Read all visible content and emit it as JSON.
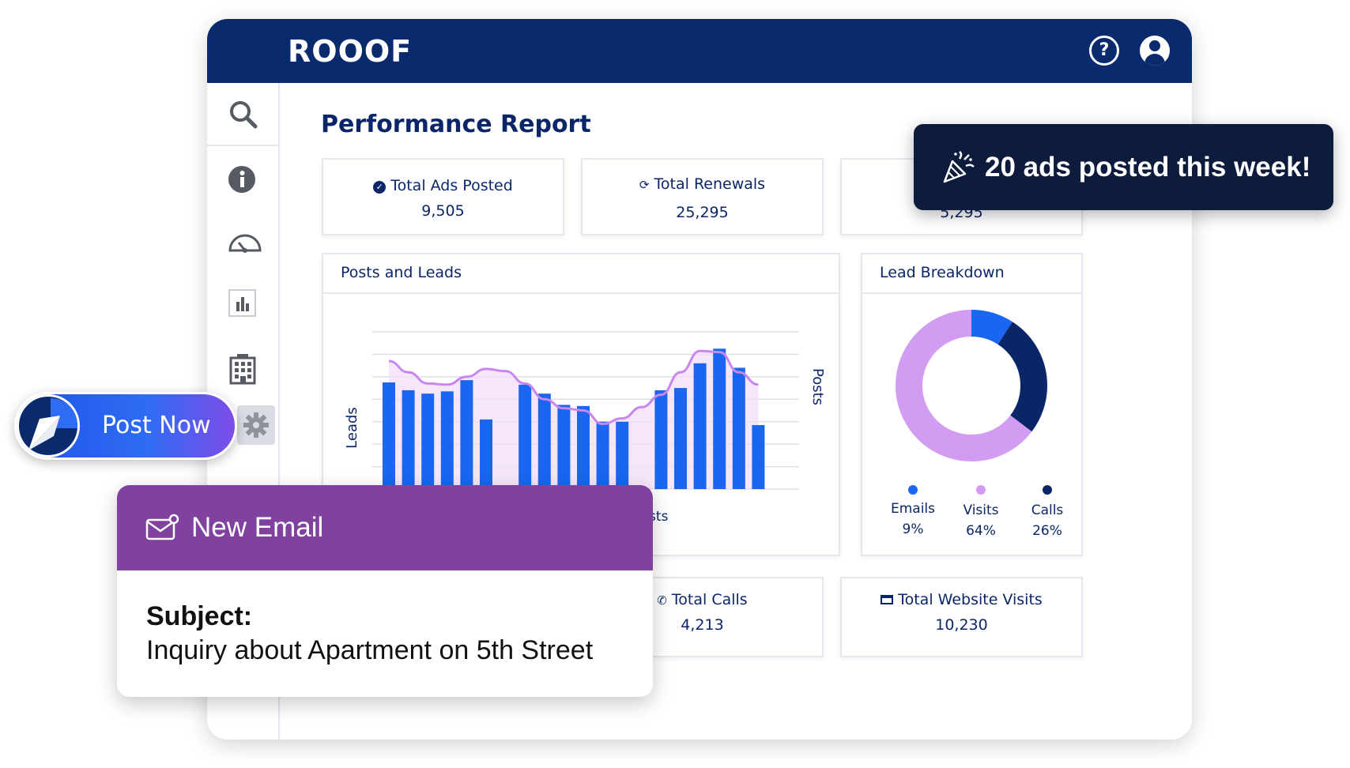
{
  "app": {
    "logo_text": "ROOOF"
  },
  "header": {
    "help_icon": "question-circle-icon",
    "user_icon": "user-avatar-icon"
  },
  "sidebar": {
    "items": [
      {
        "icon": "search-icon"
      },
      {
        "icon": "info-icon"
      },
      {
        "icon": "speedometer-icon"
      },
      {
        "icon": "bar-chart-icon"
      },
      {
        "icon": "building-icon"
      },
      {
        "icon": "gear-icon"
      }
    ]
  },
  "page": {
    "title": "Performance Report"
  },
  "stats_top": [
    {
      "icon": "check-circle-icon",
      "label": "Total Ads Posted",
      "value": "9,505"
    },
    {
      "icon": "refresh-icon",
      "label": "Total Renewals",
      "value": "25,295"
    },
    {
      "icon": "",
      "label": "",
      "value": "5,295"
    }
  ],
  "stats_bottom": [
    {
      "icon": "",
      "label": "",
      "value": ""
    },
    {
      "icon": "phone-icon",
      "label": "Total Calls",
      "value": "4,213"
    },
    {
      "icon": "browser-icon",
      "label": "Total Website Visits",
      "value": "10,230"
    }
  ],
  "posts_panel": {
    "title": "Posts and Leads",
    "chart_data": {
      "type": "bar",
      "title": "Posts and Leads",
      "ylabel": "Leads",
      "y2label": "Posts",
      "series": [
        {
          "name": "Posts",
          "type": "bar",
          "values": [
            9.5,
            8.8,
            8.5,
            8.7,
            9.7,
            6.2,
            0,
            9.3,
            8.5,
            7.5,
            7.4,
            6.0,
            6.0,
            0,
            8.8,
            9.0,
            11.2,
            12.5,
            10.8,
            5.7
          ]
        },
        {
          "name": "Leads",
          "type": "line",
          "values": [
            11.4,
            10.4,
            9.4,
            9.3,
            10.0,
            10.7,
            10.5,
            9.4,
            8.0,
            7.2,
            7.0,
            5.8,
            6.3,
            7.3,
            8.4,
            10.4,
            12.3,
            12.2,
            10.4,
            9.3
          ]
        }
      ],
      "ylim": [
        0,
        14
      ],
      "grid": true,
      "legend": "bottom"
    },
    "legend_label": "Posts"
  },
  "lead_panel": {
    "title": "Lead Breakdown",
    "chart_data": {
      "type": "pie",
      "series": [
        {
          "name": "Emails",
          "value": 9,
          "color": "#1a66f0"
        },
        {
          "name": "Visits",
          "value": 64,
          "color": "#d29cf2"
        },
        {
          "name": "Calls",
          "value": 26,
          "color": "#0b2668"
        }
      ]
    },
    "legend": [
      {
        "name": "Emails",
        "pct": "9%",
        "color": "#1a66f0"
      },
      {
        "name": "Visits",
        "pct": "64%",
        "color": "#d29cf2"
      },
      {
        "name": "Calls",
        "pct": "26%",
        "color": "#0b2668"
      }
    ]
  },
  "toast": {
    "icon": "party-popper-icon",
    "text": "20 ads posted this week!"
  },
  "post_now": {
    "icon": "cursor-arrow-icon",
    "label": "Post Now"
  },
  "email": {
    "icon": "envelope-icon",
    "title": "New Email",
    "subject_label": "Subject:",
    "subject": "Inquiry about Apartment on 5th Street"
  },
  "colors": {
    "navy": "#0a2a6e",
    "bar_blue": "#1a66f0",
    "line_purple": "#c987ee",
    "email_purple": "#80419f",
    "toast_bg": "#0d1b3d"
  }
}
